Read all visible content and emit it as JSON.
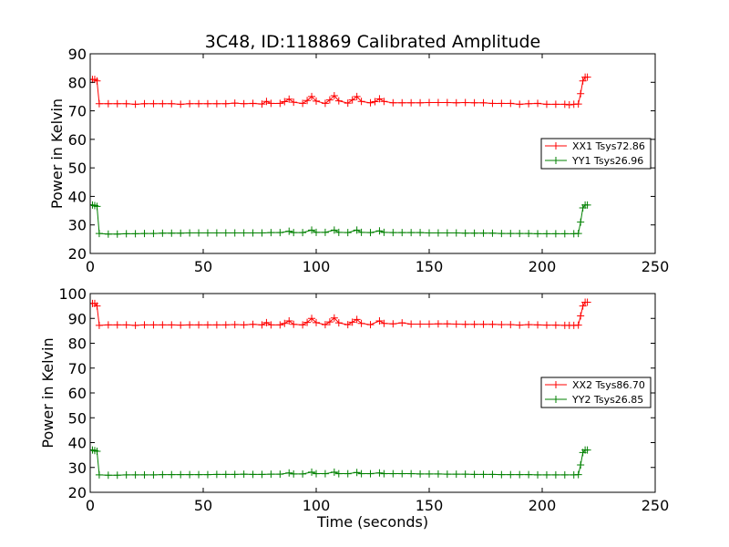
{
  "chart_data": [
    {
      "type": "line",
      "title": "3C48, ID:118869 Calibrated Amplitude",
      "xlabel": "",
      "ylabel": "Power in Kelvin",
      "xlim": [
        0,
        250
      ],
      "ylim": [
        20,
        90
      ],
      "xticks": [
        0,
        50,
        100,
        150,
        200,
        250
      ],
      "yticks": [
        20,
        30,
        40,
        50,
        60,
        70,
        80,
        90
      ],
      "marker": "plus",
      "grid": false,
      "legend_position": "center-right",
      "series": [
        {
          "name": "XX1 Tsys72.86",
          "color": "#ff0000",
          "points": [
            [
              0,
              81
            ],
            [
              1,
              81
            ],
            [
              2,
              81
            ],
            [
              3,
              80.5
            ],
            [
              4,
              72.5
            ],
            [
              8,
              72.5
            ],
            [
              12,
              72.5
            ],
            [
              16,
              72.5
            ],
            [
              20,
              72.3
            ],
            [
              24,
              72.5
            ],
            [
              28,
              72.5
            ],
            [
              32,
              72.5
            ],
            [
              36,
              72.5
            ],
            [
              40,
              72.3
            ],
            [
              44,
              72.5
            ],
            [
              48,
              72.5
            ],
            [
              52,
              72.5
            ],
            [
              56,
              72.5
            ],
            [
              60,
              72.5
            ],
            [
              64,
              72.7
            ],
            [
              68,
              72.5
            ],
            [
              72,
              72.6
            ],
            [
              76,
              72.4
            ],
            [
              78,
              73.3
            ],
            [
              80,
              72.6
            ],
            [
              84,
              72.6
            ],
            [
              86,
              73.2
            ],
            [
              88,
              74.1
            ],
            [
              90,
              73
            ],
            [
              94,
              72.6
            ],
            [
              96,
              73.6
            ],
            [
              98,
              75
            ],
            [
              100,
              73.4
            ],
            [
              104,
              72.6
            ],
            [
              106,
              73.8
            ],
            [
              108,
              75.3
            ],
            [
              110,
              73.5
            ],
            [
              114,
              72.7
            ],
            [
              116,
              73.8
            ],
            [
              118,
              75
            ],
            [
              120,
              73.3
            ],
            [
              124,
              72.8
            ],
            [
              126,
              73.2
            ],
            [
              128,
              74.2
            ],
            [
              130,
              73.3
            ],
            [
              134,
              72.8
            ],
            [
              138,
              72.8
            ],
            [
              142,
              72.8
            ],
            [
              146,
              72.8
            ],
            [
              150,
              72.9
            ],
            [
              154,
              72.9
            ],
            [
              158,
              72.9
            ],
            [
              162,
              72.8
            ],
            [
              166,
              72.9
            ],
            [
              170,
              72.8
            ],
            [
              174,
              72.8
            ],
            [
              178,
              72.6
            ],
            [
              182,
              72.6
            ],
            [
              186,
              72.6
            ],
            [
              190,
              72.3
            ],
            [
              194,
              72.5
            ],
            [
              198,
              72.6
            ],
            [
              202,
              72.3
            ],
            [
              206,
              72.3
            ],
            [
              210,
              72.3
            ],
            [
              212,
              72.1
            ],
            [
              214,
              72.3
            ],
            [
              216,
              72.4
            ],
            [
              217,
              76
            ],
            [
              218,
              80.5
            ],
            [
              219,
              81.8
            ],
            [
              220,
              81.8
            ]
          ]
        },
        {
          "name": "YY1 Tsys26.96",
          "color": "#008000",
          "points": [
            [
              0,
              37
            ],
            [
              1,
              37
            ],
            [
              2,
              36.8
            ],
            [
              3,
              36.5
            ],
            [
              4,
              27
            ],
            [
              8,
              26.8
            ],
            [
              12,
              26.8
            ],
            [
              16,
              26.9
            ],
            [
              20,
              26.9
            ],
            [
              24,
              27
            ],
            [
              28,
              27
            ],
            [
              32,
              27.1
            ],
            [
              36,
              27.1
            ],
            [
              40,
              27.1
            ],
            [
              44,
              27.2
            ],
            [
              48,
              27.2
            ],
            [
              52,
              27.2
            ],
            [
              56,
              27.2
            ],
            [
              60,
              27.2
            ],
            [
              64,
              27.2
            ],
            [
              68,
              27.2
            ],
            [
              72,
              27.2
            ],
            [
              76,
              27.2
            ],
            [
              80,
              27.3
            ],
            [
              84,
              27.3
            ],
            [
              88,
              27.8
            ],
            [
              90,
              27.3
            ],
            [
              94,
              27.3
            ],
            [
              98,
              28.2
            ],
            [
              100,
              27.4
            ],
            [
              104,
              27.4
            ],
            [
              108,
              28.2
            ],
            [
              110,
              27.4
            ],
            [
              114,
              27.3
            ],
            [
              118,
              28.2
            ],
            [
              120,
              27.4
            ],
            [
              124,
              27.3
            ],
            [
              128,
              27.9
            ],
            [
              130,
              27.4
            ],
            [
              134,
              27.3
            ],
            [
              138,
              27.3
            ],
            [
              142,
              27.3
            ],
            [
              146,
              27.3
            ],
            [
              150,
              27.2
            ],
            [
              154,
              27.2
            ],
            [
              158,
              27.2
            ],
            [
              162,
              27.2
            ],
            [
              166,
              27.1
            ],
            [
              170,
              27.1
            ],
            [
              174,
              27.1
            ],
            [
              178,
              27.1
            ],
            [
              182,
              27
            ],
            [
              186,
              27
            ],
            [
              190,
              27
            ],
            [
              194,
              27
            ],
            [
              198,
              26.9
            ],
            [
              202,
              26.9
            ],
            [
              206,
              26.9
            ],
            [
              210,
              26.9
            ],
            [
              214,
              26.9
            ],
            [
              216,
              27
            ],
            [
              217,
              31
            ],
            [
              218,
              36
            ],
            [
              219,
              37
            ],
            [
              220,
              37
            ]
          ]
        }
      ]
    },
    {
      "type": "line",
      "title": "",
      "xlabel": "Time (seconds)",
      "ylabel": "Power in Kelvin",
      "xlim": [
        0,
        250
      ],
      "ylim": [
        20,
        100
      ],
      "xticks": [
        0,
        50,
        100,
        150,
        200,
        250
      ],
      "yticks": [
        20,
        30,
        40,
        50,
        60,
        70,
        80,
        90,
        100
      ],
      "marker": "plus",
      "grid": false,
      "legend_position": "center-right",
      "series": [
        {
          "name": "XX2 Tsys86.70",
          "color": "#ff0000",
          "points": [
            [
              0,
              96
            ],
            [
              1,
              96
            ],
            [
              2,
              96
            ],
            [
              3,
              95
            ],
            [
              4,
              87.2
            ],
            [
              8,
              87.4
            ],
            [
              12,
              87.4
            ],
            [
              16,
              87.4
            ],
            [
              20,
              87.2
            ],
            [
              24,
              87.4
            ],
            [
              28,
              87.4
            ],
            [
              32,
              87.4
            ],
            [
              36,
              87.4
            ],
            [
              40,
              87.3
            ],
            [
              44,
              87.4
            ],
            [
              48,
              87.4
            ],
            [
              52,
              87.4
            ],
            [
              56,
              87.4
            ],
            [
              60,
              87.4
            ],
            [
              64,
              87.5
            ],
            [
              68,
              87.4
            ],
            [
              72,
              87.6
            ],
            [
              76,
              87.4
            ],
            [
              78,
              88.3
            ],
            [
              80,
              87.4
            ],
            [
              84,
              87.4
            ],
            [
              86,
              88
            ],
            [
              88,
              89
            ],
            [
              90,
              87.6
            ],
            [
              94,
              87.4
            ],
            [
              96,
              88.4
            ],
            [
              98,
              90
            ],
            [
              100,
              88.3
            ],
            [
              104,
              87.5
            ],
            [
              106,
              88.6
            ],
            [
              108,
              90.2
            ],
            [
              110,
              88.2
            ],
            [
              114,
              87.5
            ],
            [
              116,
              88.5
            ],
            [
              118,
              89.6
            ],
            [
              120,
              88
            ],
            [
              124,
              87.5
            ],
            [
              128,
              89
            ],
            [
              130,
              88
            ],
            [
              134,
              87.8
            ],
            [
              138,
              88.2
            ],
            [
              142,
              87.7
            ],
            [
              146,
              87.7
            ],
            [
              150,
              87.7
            ],
            [
              154,
              87.8
            ],
            [
              158,
              87.8
            ],
            [
              162,
              87.7
            ],
            [
              166,
              87.6
            ],
            [
              170,
              87.6
            ],
            [
              174,
              87.6
            ],
            [
              178,
              87.6
            ],
            [
              182,
              87.5
            ],
            [
              186,
              87.5
            ],
            [
              190,
              87.3
            ],
            [
              194,
              87.5
            ],
            [
              198,
              87.4
            ],
            [
              202,
              87.3
            ],
            [
              206,
              87.3
            ],
            [
              210,
              87.2
            ],
            [
              212,
              87.2
            ],
            [
              214,
              87.2
            ],
            [
              216,
              87.3
            ],
            [
              217,
              91
            ],
            [
              218,
              95
            ],
            [
              219,
              96.5
            ],
            [
              220,
              96.5
            ]
          ]
        },
        {
          "name": "YY2 Tsys26.85",
          "color": "#008000",
          "points": [
            [
              0,
              37
            ],
            [
              1,
              37
            ],
            [
              2,
              36.8
            ],
            [
              3,
              36.5
            ],
            [
              4,
              27
            ],
            [
              8,
              26.9
            ],
            [
              12,
              26.9
            ],
            [
              16,
              27
            ],
            [
              20,
              27
            ],
            [
              24,
              27
            ],
            [
              28,
              27
            ],
            [
              32,
              27.1
            ],
            [
              36,
              27.1
            ],
            [
              40,
              27.1
            ],
            [
              44,
              27.1
            ],
            [
              48,
              27.1
            ],
            [
              52,
              27.1
            ],
            [
              56,
              27.2
            ],
            [
              60,
              27.2
            ],
            [
              64,
              27.2
            ],
            [
              68,
              27.3
            ],
            [
              72,
              27.2
            ],
            [
              76,
              27.2
            ],
            [
              80,
              27.3
            ],
            [
              84,
              27.3
            ],
            [
              88,
              27.8
            ],
            [
              90,
              27.4
            ],
            [
              94,
              27.4
            ],
            [
              98,
              28.1
            ],
            [
              100,
              27.5
            ],
            [
              104,
              27.5
            ],
            [
              108,
              28.1
            ],
            [
              110,
              27.5
            ],
            [
              114,
              27.5
            ],
            [
              118,
              28
            ],
            [
              120,
              27.5
            ],
            [
              124,
              27.5
            ],
            [
              128,
              27.8
            ],
            [
              130,
              27.5
            ],
            [
              134,
              27.5
            ],
            [
              138,
              27.5
            ],
            [
              142,
              27.5
            ],
            [
              146,
              27.4
            ],
            [
              150,
              27.4
            ],
            [
              154,
              27.4
            ],
            [
              158,
              27.3
            ],
            [
              162,
              27.3
            ],
            [
              166,
              27.3
            ],
            [
              170,
              27.2
            ],
            [
              174,
              27.2
            ],
            [
              178,
              27.2
            ],
            [
              182,
              27.1
            ],
            [
              186,
              27.1
            ],
            [
              190,
              27.1
            ],
            [
              194,
              27.1
            ],
            [
              198,
              27
            ],
            [
              202,
              27
            ],
            [
              206,
              27
            ],
            [
              210,
              27
            ],
            [
              214,
              27
            ],
            [
              216,
              27.1
            ],
            [
              217,
              31
            ],
            [
              218,
              36
            ],
            [
              219,
              37
            ],
            [
              220,
              37
            ]
          ]
        }
      ]
    }
  ]
}
